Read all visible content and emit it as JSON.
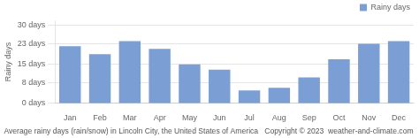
{
  "chart_data": {
    "type": "bar",
    "categories": [
      "Jan",
      "Feb",
      "Mar",
      "Apr",
      "May",
      "Jun",
      "Jul",
      "Aug",
      "Sep",
      "Oct",
      "Nov",
      "Dec"
    ],
    "series": [
      {
        "name": "Rainy days",
        "color": "#7b9fd4",
        "values": [
          22,
          19,
          24,
          21,
          15,
          13,
          5,
          6,
          10,
          17,
          23,
          24
        ]
      }
    ],
    "ylabel": "Rainy days",
    "xlabel": "Average rainy days (rain/snow) in Lincoln City, the United States of America   Copyright © 2023  weather-and-climate.com",
    "ylim": [
      0,
      32
    ],
    "yticks": [
      {
        "value": 0,
        "label": "0 days"
      },
      {
        "value": 8,
        "label": "8 days"
      },
      {
        "value": 15,
        "label": "15 days"
      },
      {
        "value": 23,
        "label": "23 days"
      },
      {
        "value": 30,
        "label": "30 days"
      }
    ],
    "grid": true,
    "legend": "upper right"
  }
}
